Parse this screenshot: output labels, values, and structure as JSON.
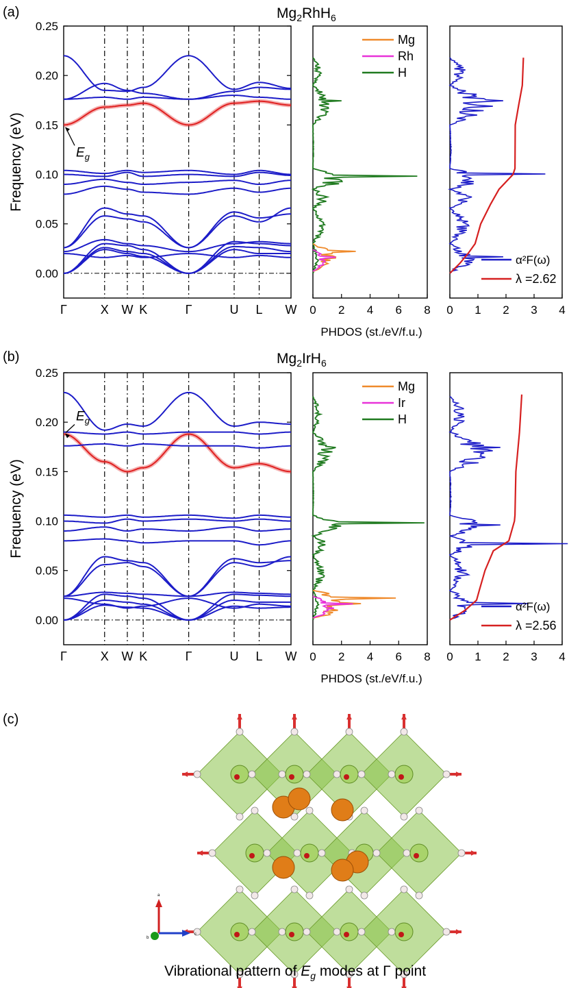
{
  "colors": {
    "band": "#1c1cc8",
    "highlight": "#e02020",
    "mg": "#ef8a2b",
    "metal": "#e832d8",
    "h": "#1f7a1f",
    "alpha": "#1c1cc8",
    "lambda": "#d62020",
    "octahedron": "#8bc34a",
    "mg_atom": "#e07d18",
    "arrow": "#d93030"
  },
  "panels": [
    {
      "label": "(a)",
      "title_base": "Mg",
      "title_sub1": "2",
      "title_mid": "RhH",
      "title_sub2": "6",
      "metal": "Rh",
      "eg_label": "E",
      "eg_sub": "g",
      "lambda_value": "2.62"
    },
    {
      "label": "(b)",
      "title_base": "Mg",
      "title_sub1": "2",
      "title_mid": "IrH",
      "title_sub2": "6",
      "metal": "Ir",
      "eg_label": "E",
      "eg_sub": "g",
      "lambda_value": "2.56"
    }
  ],
  "chart_data": [
    {
      "type": "line",
      "title": "Mg2RhH6 phonon dispersion",
      "ylabel": "Frequency (eV)",
      "ylim": [
        -0.025,
        0.25
      ],
      "yticks": [
        "0.00",
        "0.05",
        "0.10",
        "0.15",
        "0.20",
        "0.25"
      ],
      "kpath": [
        "Γ",
        "X",
        "W",
        "K",
        "Γ",
        "U",
        "L",
        "W"
      ],
      "kpos": [
        0,
        0.18,
        0.28,
        0.35,
        0.55,
        0.75,
        0.86,
        1.0
      ],
      "bands": [
        [
          0.0,
          0.024,
          0.02,
          0.017,
          0.0,
          0.024,
          0.02,
          0.02
        ],
        [
          0.0,
          0.026,
          0.022,
          0.02,
          0.0,
          0.027,
          0.026,
          0.022
        ],
        [
          0.0,
          0.03,
          0.028,
          0.024,
          0.0,
          0.032,
          0.03,
          0.028
        ],
        [
          0.02,
          0.016,
          0.018,
          0.016,
          0.02,
          0.016,
          0.018,
          0.016
        ],
        [
          0.022,
          0.034,
          0.03,
          0.028,
          0.022,
          0.03,
          0.032,
          0.03
        ],
        [
          0.026,
          0.066,
          0.06,
          0.058,
          0.026,
          0.058,
          0.052,
          0.066
        ],
        [
          0.026,
          0.058,
          0.055,
          0.052,
          0.026,
          0.062,
          0.056,
          0.06
        ],
        [
          0.08,
          0.088,
          0.085,
          0.082,
          0.08,
          0.086,
          0.082,
          0.086
        ],
        [
          0.09,
          0.095,
          0.092,
          0.09,
          0.092,
          0.094,
          0.09,
          0.094
        ],
        [
          0.1,
          0.098,
          0.102,
          0.098,
          0.1,
          0.098,
          0.102,
          0.099
        ],
        [
          0.104,
          0.101,
          0.104,
          0.102,
          0.104,
          0.1,
          0.104,
          0.1
        ],
        [
          0.15,
          0.168,
          0.17,
          0.172,
          0.15,
          0.172,
          0.174,
          0.17
        ],
        [
          0.176,
          0.178,
          0.176,
          0.178,
          0.176,
          0.18,
          0.178,
          0.176
        ],
        [
          0.176,
          0.192,
          0.185,
          0.182,
          0.176,
          0.184,
          0.188,
          0.186
        ],
        [
          0.22,
          0.185,
          0.184,
          0.188,
          0.22,
          0.186,
          0.193,
          0.187
        ]
      ],
      "eg_band_index": 11,
      "pdos": {
        "xlabel": "PHDOS (st./eV/f.u.)",
        "xlim": [
          0,
          8
        ],
        "xticks": [
          "0",
          "2",
          "4",
          "6",
          "8"
        ],
        "legend": [
          "Mg",
          "Rh",
          "H"
        ],
        "mg_peak": 3.0,
        "metal_peak": 1.6,
        "h_peak": 7.3
      },
      "eliashberg": {
        "xlim": [
          0,
          4
        ],
        "xticks": [
          "0",
          "1",
          "2",
          "3",
          "4"
        ],
        "legend_alpha": "α²F(ω)",
        "lambda_final": 2.62,
        "alpha_peak": 3.4
      }
    },
    {
      "type": "line",
      "title": "Mg2IrH6 phonon dispersion",
      "ylabel": "Frequency (eV)",
      "ylim": [
        -0.025,
        0.25
      ],
      "yticks": [
        "0.00",
        "0.05",
        "0.10",
        "0.15",
        "0.20",
        "0.25"
      ],
      "kpath": [
        "Γ",
        "X",
        "W",
        "K",
        "Γ",
        "U",
        "L",
        "W"
      ],
      "kpos": [
        0,
        0.18,
        0.28,
        0.35,
        0.55,
        0.75,
        0.86,
        1.0
      ],
      "bands": [
        [
          0.0,
          0.015,
          0.013,
          0.012,
          0.0,
          0.014,
          0.012,
          0.013
        ],
        [
          0.0,
          0.02,
          0.018,
          0.016,
          0.0,
          0.02,
          0.018,
          0.018
        ],
        [
          0.0,
          0.026,
          0.024,
          0.022,
          0.0,
          0.026,
          0.025,
          0.024
        ],
        [
          0.022,
          0.016,
          0.012,
          0.014,
          0.022,
          0.012,
          0.016,
          0.014
        ],
        [
          0.024,
          0.028,
          0.027,
          0.026,
          0.024,
          0.028,
          0.027,
          0.026
        ],
        [
          0.024,
          0.064,
          0.06,
          0.058,
          0.024,
          0.058,
          0.054,
          0.064
        ],
        [
          0.024,
          0.056,
          0.058,
          0.054,
          0.024,
          0.062,
          0.058,
          0.06
        ],
        [
          0.08,
          0.082,
          0.08,
          0.078,
          0.08,
          0.08,
          0.076,
          0.08
        ],
        [
          0.09,
          0.094,
          0.09,
          0.092,
          0.09,
          0.094,
          0.09,
          0.092
        ],
        [
          0.1,
          0.098,
          0.102,
          0.1,
          0.102,
          0.1,
          0.102,
          0.1
        ],
        [
          0.106,
          0.104,
          0.106,
          0.104,
          0.106,
          0.103,
          0.106,
          0.104
        ],
        [
          0.188,
          0.16,
          0.15,
          0.154,
          0.188,
          0.154,
          0.158,
          0.15
        ],
        [
          0.176,
          0.178,
          0.176,
          0.178,
          0.176,
          0.176,
          0.174,
          0.176
        ],
        [
          0.19,
          0.188,
          0.19,
          0.188,
          0.19,
          0.19,
          0.188,
          0.19
        ],
        [
          0.23,
          0.192,
          0.198,
          0.196,
          0.23,
          0.196,
          0.2,
          0.198
        ]
      ],
      "eg_band_index": 11,
      "pdos": {
        "xlabel": "PHDOS (st./eV/f.u.)",
        "xlim": [
          0,
          8
        ],
        "xticks": [
          "0",
          "2",
          "4",
          "6",
          "8"
        ],
        "legend": [
          "Mg",
          "Ir",
          "H"
        ],
        "mg_peak": 5.8,
        "metal_peak": 2.8,
        "h_peak": 7.8
      },
      "eliashberg": {
        "xlim": [
          0,
          4
        ],
        "xticks": [
          "0",
          "1",
          "2",
          "3",
          "4"
        ],
        "legend_alpha": "α²F(ω)",
        "lambda_final": 2.56,
        "alpha_peak": 4.2
      }
    }
  ],
  "structure": {
    "label": "(c)",
    "caption_pre": "Vibrational pattern of ",
    "caption_e": "E",
    "caption_g": "g",
    "caption_post": " modes at Γ point",
    "axis_a": "a",
    "axis_b": "b",
    "axis_c": "c"
  }
}
